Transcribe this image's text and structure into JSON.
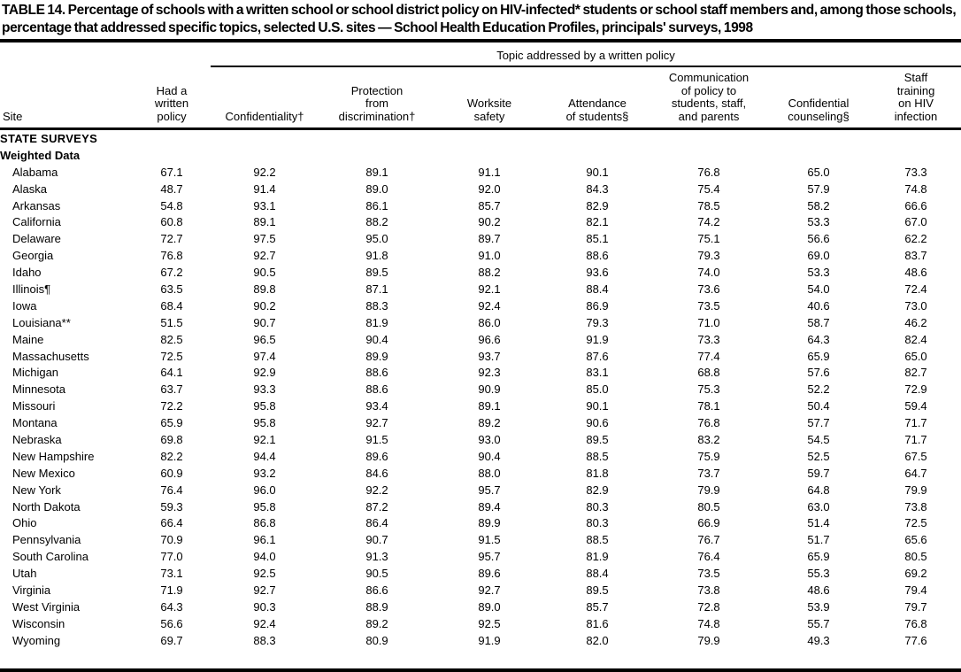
{
  "title": "TABLE 14. Percentage of schools with a written school or school district policy on HIV-infected* students or school staff members and, among those schools, percentage that addressed specific topics, selected U.S. sites — School Health Education Profiles, principals' surveys, 1998",
  "table": {
    "group_header": "Topic addressed by a written policy",
    "columns": {
      "site": [
        "Site"
      ],
      "had_policy": [
        "Had a",
        "written",
        "policy"
      ],
      "confidentiality": [
        "Confidentiality†"
      ],
      "protection": [
        "Protection",
        "from",
        "discrimination†"
      ],
      "worksite": [
        "Worksite",
        "safety"
      ],
      "attendance": [
        "Attendance",
        "of students§"
      ],
      "communication": [
        "Communication",
        "of policy to",
        "students, staff,",
        "and parents"
      ],
      "counseling": [
        "Confidential",
        "counseling§"
      ],
      "staff_training": [
        "Staff",
        "training",
        "on HIV",
        "infection"
      ]
    },
    "sections": {
      "state_surveys": "STATE SURVEYS",
      "weighted_data": "Weighted Data"
    },
    "rows": [
      {
        "site": "Alabama",
        "values": [
          "67.1",
          "92.2",
          "89.1",
          "91.1",
          "90.1",
          "76.8",
          "65.0",
          "73.3"
        ]
      },
      {
        "site": "Alaska",
        "values": [
          "48.7",
          "91.4",
          "89.0",
          "92.0",
          "84.3",
          "75.4",
          "57.9",
          "74.8"
        ]
      },
      {
        "site": "Arkansas",
        "values": [
          "54.8",
          "93.1",
          "86.1",
          "85.7",
          "82.9",
          "78.5",
          "58.2",
          "66.6"
        ]
      },
      {
        "site": "California",
        "values": [
          "60.8",
          "89.1",
          "88.2",
          "90.2",
          "82.1",
          "74.2",
          "53.3",
          "67.0"
        ]
      },
      {
        "site": "Delaware",
        "values": [
          "72.7",
          "97.5",
          "95.0",
          "89.7",
          "85.1",
          "75.1",
          "56.6",
          "62.2"
        ]
      },
      {
        "site": "Georgia",
        "values": [
          "76.8",
          "92.7",
          "91.8",
          "91.0",
          "88.6",
          "79.3",
          "69.0",
          "83.7"
        ]
      },
      {
        "site": "Idaho",
        "values": [
          "67.2",
          "90.5",
          "89.5",
          "88.2",
          "93.6",
          "74.0",
          "53.3",
          "48.6"
        ]
      },
      {
        "site": "Illinois¶",
        "values": [
          "63.5",
          "89.8",
          "87.1",
          "92.1",
          "88.4",
          "73.6",
          "54.0",
          "72.4"
        ]
      },
      {
        "site": "Iowa",
        "values": [
          "68.4",
          "90.2",
          "88.3",
          "92.4",
          "86.9",
          "73.5",
          "40.6",
          "73.0"
        ]
      },
      {
        "site": "Louisiana**",
        "values": [
          "51.5",
          "90.7",
          "81.9",
          "86.0",
          "79.3",
          "71.0",
          "58.7",
          "46.2"
        ]
      },
      {
        "site": "Maine",
        "values": [
          "82.5",
          "96.5",
          "90.4",
          "96.6",
          "91.9",
          "73.3",
          "64.3",
          "82.4"
        ]
      },
      {
        "site": "Massachusetts",
        "values": [
          "72.5",
          "97.4",
          "89.9",
          "93.7",
          "87.6",
          "77.4",
          "65.9",
          "65.0"
        ]
      },
      {
        "site": "Michigan",
        "values": [
          "64.1",
          "92.9",
          "88.6",
          "92.3",
          "83.1",
          "68.8",
          "57.6",
          "82.7"
        ]
      },
      {
        "site": "Minnesota",
        "values": [
          "63.7",
          "93.3",
          "88.6",
          "90.9",
          "85.0",
          "75.3",
          "52.2",
          "72.9"
        ]
      },
      {
        "site": "Missouri",
        "values": [
          "72.2",
          "95.8",
          "93.4",
          "89.1",
          "90.1",
          "78.1",
          "50.4",
          "59.4"
        ]
      },
      {
        "site": "Montana",
        "values": [
          "65.9",
          "95.8",
          "92.7",
          "89.2",
          "90.6",
          "76.8",
          "57.7",
          "71.7"
        ]
      },
      {
        "site": "Nebraska",
        "values": [
          "69.8",
          "92.1",
          "91.5",
          "93.0",
          "89.5",
          "83.2",
          "54.5",
          "71.7"
        ]
      },
      {
        "site": "New Hampshire",
        "values": [
          "82.2",
          "94.4",
          "89.6",
          "90.4",
          "88.5",
          "75.9",
          "52.5",
          "67.5"
        ]
      },
      {
        "site": "New Mexico",
        "values": [
          "60.9",
          "93.2",
          "84.6",
          "88.0",
          "81.8",
          "73.7",
          "59.7",
          "64.7"
        ]
      },
      {
        "site": "New York",
        "values": [
          "76.4",
          "96.0",
          "92.2",
          "95.7",
          "82.9",
          "79.9",
          "64.8",
          "79.9"
        ]
      },
      {
        "site": "North Dakota",
        "values": [
          "59.3",
          "95.8",
          "87.2",
          "89.4",
          "80.3",
          "80.5",
          "63.0",
          "73.8"
        ]
      },
      {
        "site": "Ohio",
        "values": [
          "66.4",
          "86.8",
          "86.4",
          "89.9",
          "80.3",
          "66.9",
          "51.4",
          "72.5"
        ]
      },
      {
        "site": "Pennsylvania",
        "values": [
          "70.9",
          "96.1",
          "90.7",
          "91.5",
          "88.5",
          "76.7",
          "51.7",
          "65.6"
        ]
      },
      {
        "site": "South Carolina",
        "values": [
          "77.0",
          "94.0",
          "91.3",
          "95.7",
          "81.9",
          "76.4",
          "65.9",
          "80.5"
        ]
      },
      {
        "site": "Utah",
        "values": [
          "73.1",
          "92.5",
          "90.5",
          "89.6",
          "88.4",
          "73.5",
          "55.3",
          "69.2"
        ]
      },
      {
        "site": "Virginia",
        "values": [
          "71.9",
          "92.7",
          "86.6",
          "92.7",
          "89.5",
          "73.8",
          "48.6",
          "79.4"
        ]
      },
      {
        "site": "West Virginia",
        "values": [
          "64.3",
          "90.3",
          "88.9",
          "89.0",
          "85.7",
          "72.8",
          "53.9",
          "79.7"
        ]
      },
      {
        "site": "Wisconsin",
        "values": [
          "56.6",
          "92.4",
          "89.2",
          "92.5",
          "81.6",
          "74.8",
          "55.7",
          "76.8"
        ]
      },
      {
        "site": "Wyoming",
        "values": [
          "69.7",
          "88.3",
          "80.9",
          "91.9",
          "82.0",
          "79.9",
          "49.3",
          "77.6"
        ]
      }
    ]
  }
}
